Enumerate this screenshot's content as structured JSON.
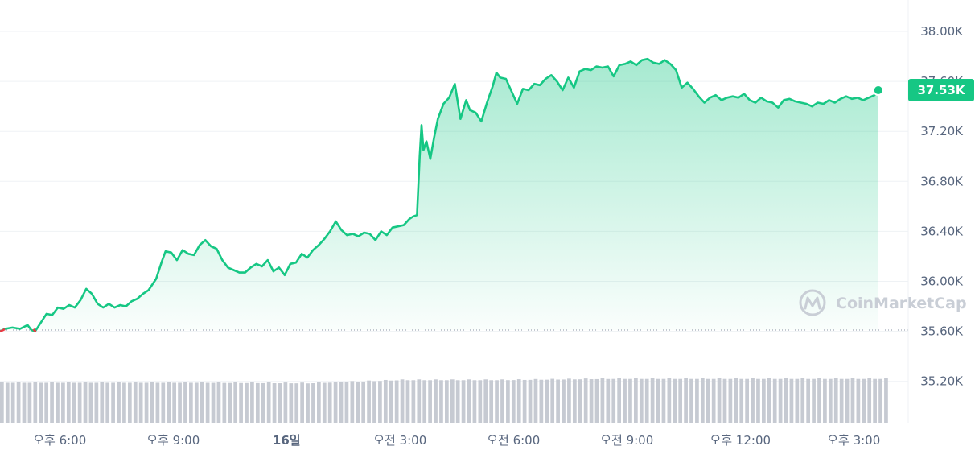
{
  "chart_data": {
    "type": "area",
    "title": "",
    "xlabel": "",
    "ylabel": "",
    "ylim": [
      34.9,
      38.2
    ],
    "y_ticks": [
      {
        "value": 38.0,
        "label": "38.00K"
      },
      {
        "value": 37.6,
        "label": "37.60K"
      },
      {
        "value": 37.2,
        "label": "37.20K"
      },
      {
        "value": 36.8,
        "label": "36.80K"
      },
      {
        "value": 36.4,
        "label": "36.40K"
      },
      {
        "value": 36.0,
        "label": "36.00K"
      },
      {
        "value": 35.6,
        "label": "35.60K"
      },
      {
        "value": 35.2,
        "label": "35.20K"
      }
    ],
    "x_range_hours": [
      0,
      24.5
    ],
    "x_ticks": [
      {
        "hour": 1.75,
        "label": "오후 6:00",
        "bold": false
      },
      {
        "hour": 4.75,
        "label": "오후 9:00",
        "bold": false
      },
      {
        "hour": 7.75,
        "label": "16일",
        "bold": true
      },
      {
        "hour": 10.75,
        "label": "오전 3:00",
        "bold": false
      },
      {
        "hour": 13.75,
        "label": "오전 6:00",
        "bold": false
      },
      {
        "hour": 16.75,
        "label": "오전 9:00",
        "bold": false
      },
      {
        "hour": 19.75,
        "label": "오후 12:00",
        "bold": false
      },
      {
        "hour": 22.75,
        "label": "오후 3:00",
        "bold": false
      }
    ],
    "baseline_price": 35.61,
    "current_price_label": "37.53K",
    "current_price": 37.53,
    "series": [
      {
        "unit": "K USD",
        "points": [
          [
            0.0,
            35.61
          ],
          [
            0.15,
            35.6
          ],
          [
            0.3,
            35.62
          ],
          [
            0.5,
            35.63
          ],
          [
            0.7,
            35.62
          ],
          [
            0.9,
            35.65
          ],
          [
            1.0,
            35.61
          ],
          [
            1.1,
            35.6
          ],
          [
            1.25,
            35.67
          ],
          [
            1.4,
            35.74
          ],
          [
            1.55,
            35.73
          ],
          [
            1.7,
            35.79
          ],
          [
            1.85,
            35.78
          ],
          [
            2.0,
            35.81
          ],
          [
            2.15,
            35.79
          ],
          [
            2.3,
            35.85
          ],
          [
            2.45,
            35.94
          ],
          [
            2.6,
            35.9
          ],
          [
            2.75,
            35.82
          ],
          [
            2.9,
            35.79
          ],
          [
            3.05,
            35.82
          ],
          [
            3.2,
            35.79
          ],
          [
            3.35,
            35.81
          ],
          [
            3.5,
            35.8
          ],
          [
            3.65,
            35.84
          ],
          [
            3.8,
            35.86
          ],
          [
            3.95,
            35.9
          ],
          [
            4.1,
            35.93
          ],
          [
            4.3,
            36.02
          ],
          [
            4.45,
            36.16
          ],
          [
            4.55,
            36.24
          ],
          [
            4.7,
            36.23
          ],
          [
            4.85,
            36.17
          ],
          [
            5.0,
            36.25
          ],
          [
            5.15,
            36.22
          ],
          [
            5.3,
            36.21
          ],
          [
            5.45,
            36.29
          ],
          [
            5.6,
            36.33
          ],
          [
            5.75,
            36.28
          ],
          [
            5.9,
            36.26
          ],
          [
            6.05,
            36.17
          ],
          [
            6.2,
            36.11
          ],
          [
            6.35,
            36.09
          ],
          [
            6.5,
            36.07
          ],
          [
            6.65,
            36.07
          ],
          [
            6.8,
            36.11
          ],
          [
            6.95,
            36.14
          ],
          [
            7.1,
            36.12
          ],
          [
            7.25,
            36.17
          ],
          [
            7.4,
            36.08
          ],
          [
            7.55,
            36.11
          ],
          [
            7.7,
            36.05
          ],
          [
            7.85,
            36.14
          ],
          [
            8.0,
            36.15
          ],
          [
            8.15,
            36.22
          ],
          [
            8.3,
            36.19
          ],
          [
            8.45,
            36.25
          ],
          [
            8.6,
            36.29
          ],
          [
            8.75,
            36.34
          ],
          [
            8.9,
            36.4
          ],
          [
            9.05,
            36.48
          ],
          [
            9.2,
            36.41
          ],
          [
            9.35,
            36.37
          ],
          [
            9.5,
            36.38
          ],
          [
            9.65,
            36.36
          ],
          [
            9.8,
            36.39
          ],
          [
            9.95,
            36.38
          ],
          [
            10.1,
            36.33
          ],
          [
            10.25,
            36.4
          ],
          [
            10.4,
            36.37
          ],
          [
            10.55,
            36.43
          ],
          [
            10.7,
            36.44
          ],
          [
            10.85,
            36.45
          ],
          [
            11.0,
            36.5
          ],
          [
            11.1,
            36.52
          ],
          [
            11.2,
            36.53
          ],
          [
            11.27,
            37.0
          ],
          [
            11.32,
            37.25
          ],
          [
            11.37,
            37.05
          ],
          [
            11.45,
            37.12
          ],
          [
            11.55,
            36.98
          ],
          [
            11.65,
            37.15
          ],
          [
            11.75,
            37.3
          ],
          [
            11.9,
            37.42
          ],
          [
            12.05,
            37.47
          ],
          [
            12.2,
            37.58
          ],
          [
            12.35,
            37.3
          ],
          [
            12.5,
            37.45
          ],
          [
            12.6,
            37.37
          ],
          [
            12.75,
            37.35
          ],
          [
            12.9,
            37.28
          ],
          [
            13.05,
            37.43
          ],
          [
            13.2,
            37.56
          ],
          [
            13.3,
            37.67
          ],
          [
            13.4,
            37.63
          ],
          [
            13.55,
            37.62
          ],
          [
            13.7,
            37.52
          ],
          [
            13.85,
            37.42
          ],
          [
            14.0,
            37.54
          ],
          [
            14.15,
            37.53
          ],
          [
            14.3,
            37.58
          ],
          [
            14.45,
            37.57
          ],
          [
            14.6,
            37.62
          ],
          [
            14.75,
            37.65
          ],
          [
            14.9,
            37.6
          ],
          [
            15.05,
            37.53
          ],
          [
            15.2,
            37.63
          ],
          [
            15.35,
            37.55
          ],
          [
            15.5,
            37.68
          ],
          [
            15.65,
            37.7
          ],
          [
            15.8,
            37.69
          ],
          [
            15.95,
            37.72
          ],
          [
            16.1,
            37.71
          ],
          [
            16.25,
            37.72
          ],
          [
            16.4,
            37.64
          ],
          [
            16.55,
            37.73
          ],
          [
            16.7,
            37.74
          ],
          [
            16.85,
            37.76
          ],
          [
            17.0,
            37.73
          ],
          [
            17.15,
            37.77
          ],
          [
            17.3,
            37.78
          ],
          [
            17.45,
            37.75
          ],
          [
            17.6,
            37.74
          ],
          [
            17.75,
            37.77
          ],
          [
            17.9,
            37.74
          ],
          [
            18.05,
            37.69
          ],
          [
            18.2,
            37.55
          ],
          [
            18.35,
            37.59
          ],
          [
            18.5,
            37.54
          ],
          [
            18.65,
            37.48
          ],
          [
            18.8,
            37.43
          ],
          [
            18.95,
            37.47
          ],
          [
            19.1,
            37.49
          ],
          [
            19.25,
            37.45
          ],
          [
            19.4,
            37.47
          ],
          [
            19.55,
            37.48
          ],
          [
            19.7,
            37.47
          ],
          [
            19.85,
            37.5
          ],
          [
            20.0,
            37.45
          ],
          [
            20.15,
            37.43
          ],
          [
            20.3,
            37.47
          ],
          [
            20.45,
            37.44
          ],
          [
            20.6,
            37.43
          ],
          [
            20.75,
            37.39
          ],
          [
            20.9,
            37.45
          ],
          [
            21.05,
            37.46
          ],
          [
            21.2,
            37.44
          ],
          [
            21.35,
            37.43
          ],
          [
            21.5,
            37.42
          ],
          [
            21.65,
            37.4
          ],
          [
            21.8,
            37.43
          ],
          [
            21.95,
            37.42
          ],
          [
            22.1,
            37.45
          ],
          [
            22.25,
            37.43
          ],
          [
            22.4,
            37.46
          ],
          [
            22.55,
            37.48
          ],
          [
            22.7,
            37.46
          ],
          [
            22.85,
            37.47
          ],
          [
            23.0,
            37.45
          ],
          [
            23.15,
            37.47
          ],
          [
            23.3,
            37.49
          ],
          [
            23.4,
            37.53
          ]
        ]
      }
    ],
    "volume_bars": {
      "count": 160,
      "relative_heights": [
        [
          0,
          0.64
        ],
        [
          35,
          0.64
        ],
        [
          55,
          0.63
        ],
        [
          72,
          0.68
        ],
        [
          90,
          0.68
        ],
        [
          110,
          0.7
        ],
        [
          140,
          0.7
        ],
        [
          159,
          0.7
        ]
      ]
    },
    "colors": {
      "line": "#16c784",
      "fill_top": "#16c784",
      "negative": "#ea3943",
      "grid": "#eff2f5",
      "volume": "#c6cad2",
      "badge": "#16c784"
    },
    "grid": true,
    "watermark": "CoinMarketCap"
  }
}
